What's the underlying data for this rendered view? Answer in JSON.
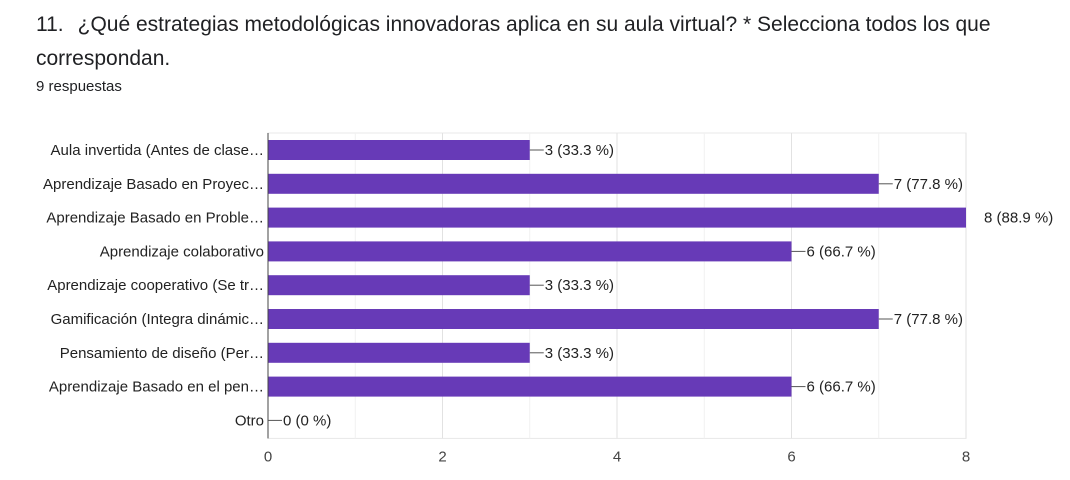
{
  "question": {
    "number": "11.",
    "text": "¿Qué estrategias metodológicas innovadoras aplica en su aula virtual? * Selecciona todos los que correspondan.",
    "responses": "9 respuestas"
  },
  "colors": {
    "bar": "#673ab7",
    "grid": "#e8e8e8",
    "axis": "#444444",
    "text": "#222222"
  },
  "chart_data": {
    "type": "bar",
    "orientation": "horizontal",
    "title": "¿Qué estrategias metodológicas innovadoras aplica en su aula virtual? * Selecciona todos los que correspondan.",
    "xlabel": "",
    "ylabel": "",
    "xlim": [
      0,
      8
    ],
    "xticks": [
      0,
      2,
      4,
      6,
      8
    ],
    "grid": true,
    "categories": [
      "Aula invertida (Antes de clase…",
      "Aprendizaje Basado en Proyec…",
      "Aprendizaje Basado en Proble…",
      "Aprendizaje colaborativo",
      "Aprendizaje cooperativo (Se tr…",
      "Gamificación (Integra dinámic…",
      "Pensamiento de diseño (Per…",
      "Aprendizaje Basado en el pen…",
      "Otro"
    ],
    "values": [
      3,
      7,
      8,
      6,
      3,
      7,
      3,
      6,
      0
    ],
    "value_labels": [
      "3 (33.3 %)",
      "7 (77.8 %)",
      "8 (88.9 %)",
      "6 (66.7 %)",
      "3 (33.3 %)",
      "7 (77.8 %)",
      "3 (33.3 %)",
      "6 (66.7 %)",
      "0 (0 %)"
    ]
  }
}
